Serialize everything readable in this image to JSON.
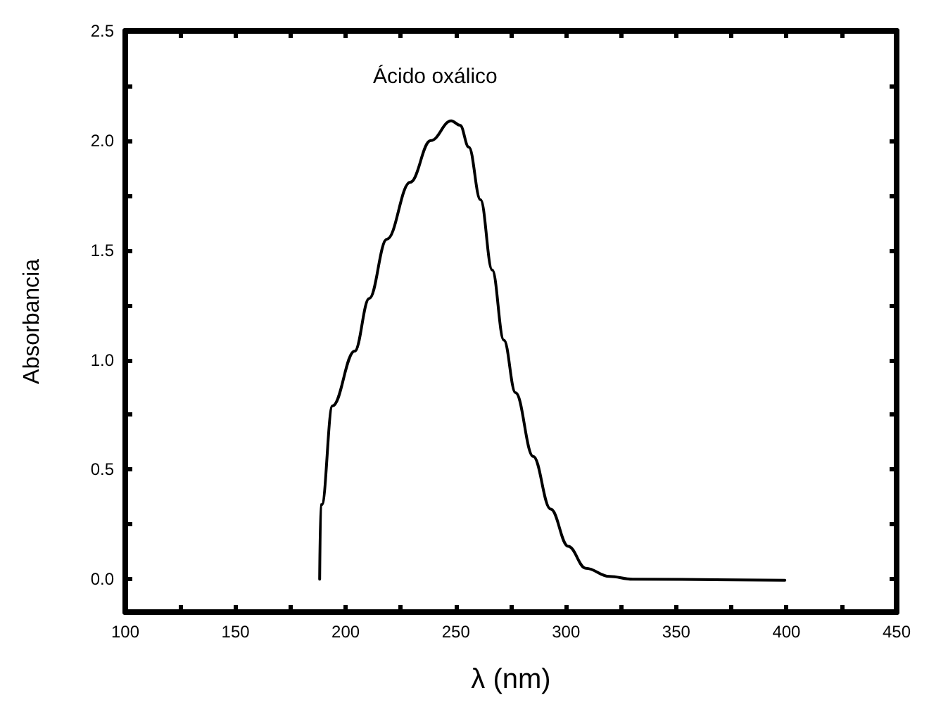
{
  "chart_data": {
    "type": "line",
    "title": "Ácido oxálico",
    "xlabel": "λ (nm)",
    "ylabel": "Absorbancia",
    "color": "#000000",
    "x": [
      188.2,
      188.7,
      189.2,
      194.0,
      204.1,
      210.7,
      218.7,
      229.3,
      238.6,
      247.9,
      251.9,
      255.9,
      261.2,
      266.5,
      271.8,
      277.1,
      285.1,
      293.0,
      301.0,
      309.0,
      319.6,
      330.2,
      399.3
    ],
    "values": [
      0,
      0.34,
      0.34,
      0.79,
      1.04,
      1.28,
      1.55,
      1.81,
      2.0,
      2.09,
      2.07,
      1.97,
      1.73,
      1.41,
      1.09,
      0.85,
      0.56,
      0.32,
      0.15,
      0.05,
      0.013,
      0.0,
      -0.005
    ],
    "xlim": [
      100,
      450
    ],
    "xticks": [
      100,
      {
        "value": 125,
        "label": null
      },
      150,
      {
        "value": 175,
        "label": null
      },
      200,
      {
        "value": 225,
        "label": null
      },
      250,
      {
        "value": 275,
        "label": null
      },
      300,
      {
        "value": 325,
        "label": null
      },
      350,
      {
        "value": 375,
        "label": null
      },
      400,
      {
        "value": 425,
        "label": null
      },
      450
    ],
    "ylim": [
      -0.15,
      2.5
    ],
    "yticks": [
      {
        "value": 0,
        "label": "0.0"
      },
      {
        "value": 0.25,
        "label": null
      },
      {
        "value": 0.5,
        "label": "0.5"
      },
      {
        "value": 0.75,
        "label": null
      },
      {
        "value": 1,
        "label": "1.0"
      },
      {
        "value": 1.25,
        "label": null
      },
      {
        "value": 1.5,
        "label": "1.5"
      },
      {
        "value": 1.75,
        "label": null
      },
      {
        "value": 2,
        "label": "2.0"
      },
      {
        "value": 2.25,
        "label": null
      },
      {
        "value": 2.5,
        "label": "2.5"
      }
    ],
    "grid": false,
    "marker": "none",
    "line_style": "solid"
  }
}
